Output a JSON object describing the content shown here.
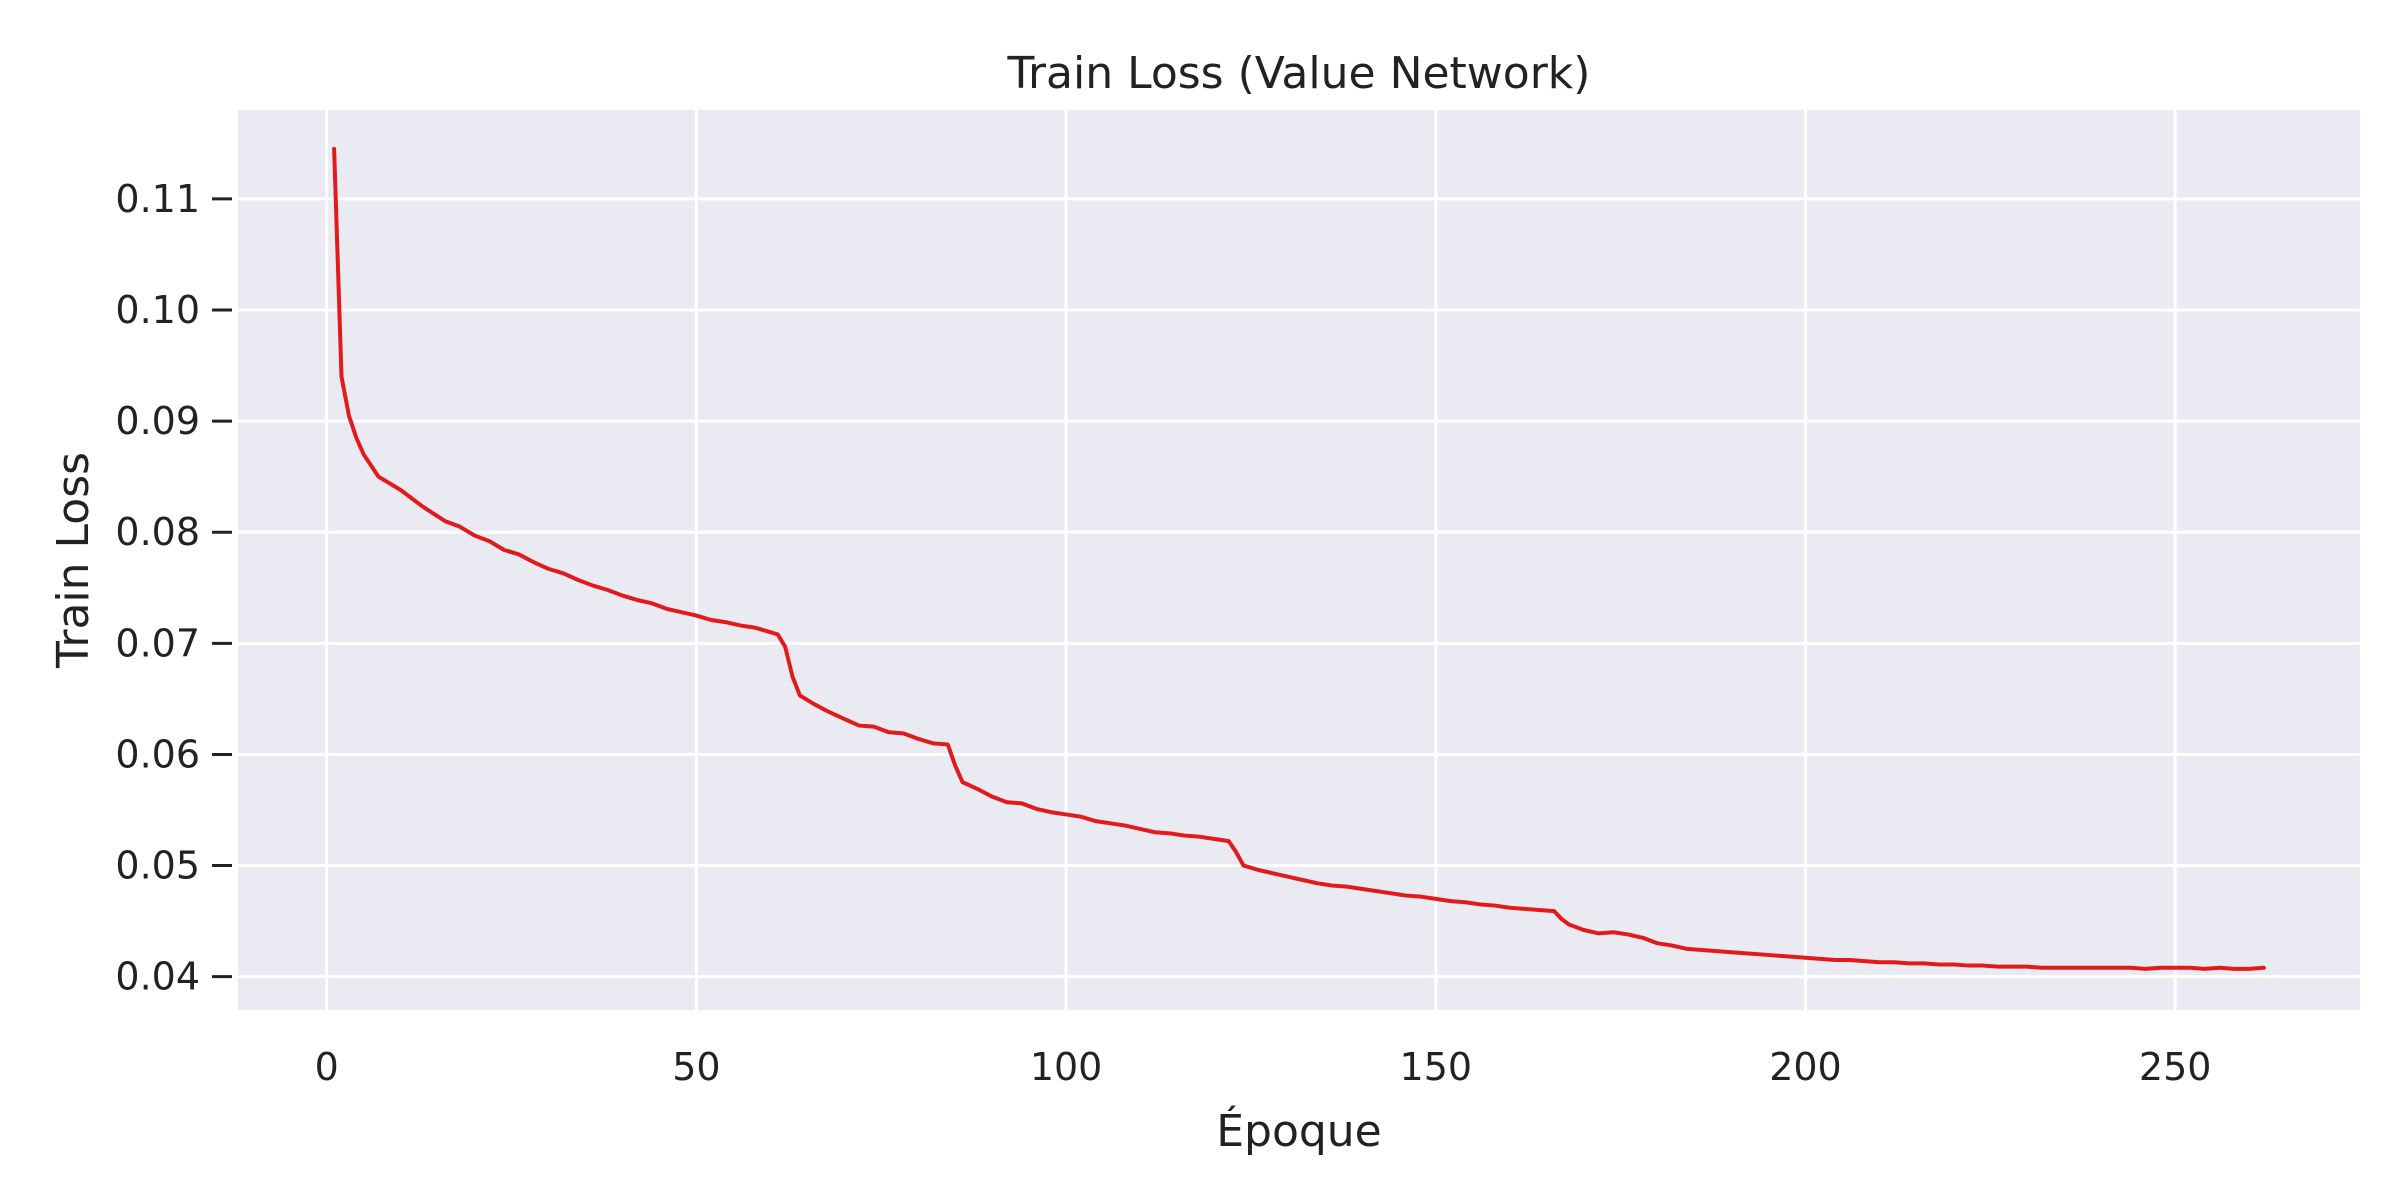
{
  "chart_data": {
    "type": "line",
    "title": "Train Loss (Value Network)",
    "xlabel": "Époque",
    "ylabel": "Train Loss",
    "xlim": [
      -12,
      275
    ],
    "ylim": [
      0.037,
      0.118
    ],
    "xticks": [
      0,
      50,
      100,
      150,
      200,
      250
    ],
    "yticks": [
      0.04,
      0.05,
      0.06,
      0.07,
      0.08,
      0.09,
      0.1,
      0.11
    ],
    "ytick_labels": [
      "0.04",
      "0.05",
      "0.06",
      "0.07",
      "0.08",
      "0.09",
      "0.10",
      "0.11"
    ],
    "grid": true,
    "legend": "none",
    "colors": {
      "background": "#eaeaf2",
      "grid": "#ffffff",
      "line": "#e31a1c"
    },
    "series": [
      {
        "points": [
          [
            1,
            0.1145
          ],
          [
            2,
            0.094
          ],
          [
            3,
            0.0905
          ],
          [
            4,
            0.0885
          ],
          [
            5,
            0.087
          ],
          [
            6,
            0.086
          ],
          [
            7,
            0.085
          ],
          [
            10,
            0.0838
          ],
          [
            13,
            0.0823
          ],
          [
            16,
            0.081
          ],
          [
            18,
            0.0805
          ],
          [
            20,
            0.0797
          ],
          [
            22,
            0.0792
          ],
          [
            24,
            0.0784
          ],
          [
            26,
            0.078
          ],
          [
            28,
            0.0773
          ],
          [
            30,
            0.0767
          ],
          [
            32,
            0.0763
          ],
          [
            34,
            0.0757
          ],
          [
            36,
            0.0752
          ],
          [
            38,
            0.0748
          ],
          [
            40,
            0.0743
          ],
          [
            42,
            0.0739
          ],
          [
            44,
            0.0736
          ],
          [
            46,
            0.0731
          ],
          [
            48,
            0.0728
          ],
          [
            50,
            0.0725
          ],
          [
            52,
            0.0721
          ],
          [
            54,
            0.0719
          ],
          [
            56,
            0.0716
          ],
          [
            58,
            0.0714
          ],
          [
            60,
            0.071
          ],
          [
            61,
            0.0708
          ],
          [
            62,
            0.0697
          ],
          [
            63,
            0.067
          ],
          [
            64,
            0.0653
          ],
          [
            66,
            0.0645
          ],
          [
            68,
            0.0638
          ],
          [
            70,
            0.0632
          ],
          [
            72,
            0.0626
          ],
          [
            74,
            0.0625
          ],
          [
            76,
            0.062
          ],
          [
            78,
            0.0619
          ],
          [
            80,
            0.0614
          ],
          [
            82,
            0.061
          ],
          [
            84,
            0.0609
          ],
          [
            85,
            0.059
          ],
          [
            86,
            0.0575
          ],
          [
            88,
            0.0569
          ],
          [
            90,
            0.0562
          ],
          [
            92,
            0.0557
          ],
          [
            94,
            0.0556
          ],
          [
            96,
            0.0551
          ],
          [
            98,
            0.0548
          ],
          [
            100,
            0.0546
          ],
          [
            102,
            0.0544
          ],
          [
            104,
            0.054
          ],
          [
            106,
            0.0538
          ],
          [
            108,
            0.0536
          ],
          [
            110,
            0.0533
          ],
          [
            112,
            0.053
          ],
          [
            114,
            0.0529
          ],
          [
            116,
            0.0527
          ],
          [
            118,
            0.0526
          ],
          [
            120,
            0.0524
          ],
          [
            122,
            0.0522
          ],
          [
            123,
            0.0512
          ],
          [
            124,
            0.05
          ],
          [
            126,
            0.0496
          ],
          [
            128,
            0.0493
          ],
          [
            130,
            0.049
          ],
          [
            132,
            0.0487
          ],
          [
            134,
            0.0484
          ],
          [
            136,
            0.0482
          ],
          [
            138,
            0.0481
          ],
          [
            140,
            0.0479
          ],
          [
            142,
            0.0477
          ],
          [
            144,
            0.0475
          ],
          [
            146,
            0.0473
          ],
          [
            148,
            0.0472
          ],
          [
            150,
            0.047
          ],
          [
            152,
            0.0468
          ],
          [
            154,
            0.0467
          ],
          [
            156,
            0.0465
          ],
          [
            158,
            0.0464
          ],
          [
            160,
            0.0462
          ],
          [
            162,
            0.0461
          ],
          [
            164,
            0.046
          ],
          [
            166,
            0.0459
          ],
          [
            167,
            0.0452
          ],
          [
            168,
            0.0447
          ],
          [
            170,
            0.0442
          ],
          [
            172,
            0.0439
          ],
          [
            174,
            0.044
          ],
          [
            176,
            0.0438
          ],
          [
            178,
            0.0435
          ],
          [
            180,
            0.043
          ],
          [
            182,
            0.0428
          ],
          [
            184,
            0.0425
          ],
          [
            186,
            0.0424
          ],
          [
            188,
            0.0423
          ],
          [
            190,
            0.0422
          ],
          [
            192,
            0.0421
          ],
          [
            194,
            0.042
          ],
          [
            196,
            0.0419
          ],
          [
            198,
            0.0418
          ],
          [
            200,
            0.0417
          ],
          [
            202,
            0.0416
          ],
          [
            204,
            0.0415
          ],
          [
            206,
            0.0415
          ],
          [
            208,
            0.0414
          ],
          [
            210,
            0.0413
          ],
          [
            212,
            0.0413
          ],
          [
            214,
            0.0412
          ],
          [
            216,
            0.0412
          ],
          [
            218,
            0.0411
          ],
          [
            220,
            0.0411
          ],
          [
            222,
            0.041
          ],
          [
            224,
            0.041
          ],
          [
            226,
            0.0409
          ],
          [
            228,
            0.0409
          ],
          [
            230,
            0.0409
          ],
          [
            232,
            0.0408
          ],
          [
            234,
            0.0408
          ],
          [
            236,
            0.0408
          ],
          [
            238,
            0.0408
          ],
          [
            240,
            0.0408
          ],
          [
            242,
            0.0408
          ],
          [
            244,
            0.0408
          ],
          [
            246,
            0.0407
          ],
          [
            248,
            0.0408
          ],
          [
            250,
            0.0408
          ],
          [
            252,
            0.0408
          ],
          [
            254,
            0.0407
          ],
          [
            256,
            0.0408
          ],
          [
            258,
            0.0407
          ],
          [
            260,
            0.0407
          ],
          [
            262,
            0.0408
          ]
        ]
      }
    ]
  }
}
